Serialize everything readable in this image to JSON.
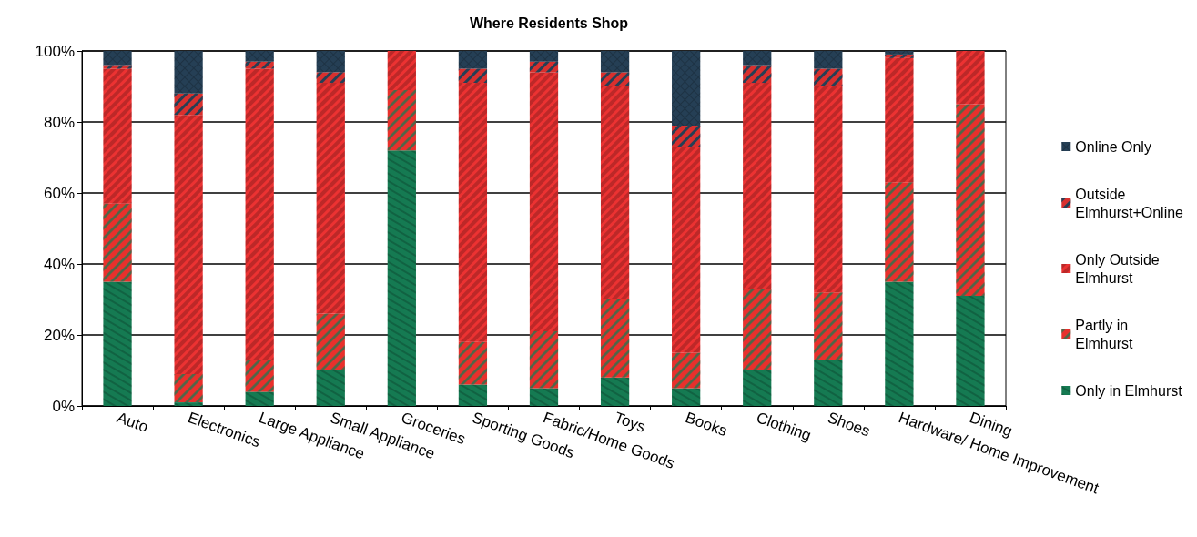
{
  "chart_data": {
    "type": "bar",
    "title": "Where Residents Shop",
    "stacked": true,
    "categories": [
      "Auto",
      "Electronics",
      "Large Appliance",
      "Small Appliance",
      "Groceries",
      "Sporting Goods",
      "Fabric/Home Goods",
      "Toys",
      "Books",
      "Clothing",
      "Shoes",
      "Hardware/ Home Improvement",
      "Dining"
    ],
    "series": [
      {
        "name": "Only in Elmhurst",
        "color": "#157a52",
        "values": [
          35,
          1,
          4,
          10,
          72,
          6,
          5,
          8,
          5,
          10,
          13,
          35,
          31
        ]
      },
      {
        "name": "Partly in Elmhurst",
        "color": "#e8302c",
        "values": [
          22,
          8,
          9,
          16,
          17,
          12,
          16,
          22,
          10,
          23,
          19,
          28,
          54
        ]
      },
      {
        "name": "Only Outside Elmhurst",
        "color": "#ec3232",
        "values": [
          38,
          73,
          82,
          65,
          11,
          73,
          73,
          60,
          58,
          58,
          58,
          35,
          15
        ]
      },
      {
        "name": "Outside Elmhurst+Online",
        "color": "#d8302e",
        "values": [
          1,
          6,
          2,
          3,
          0,
          4,
          3,
          4,
          6,
          5,
          5,
          1,
          0
        ]
      },
      {
        "name": "Online Only",
        "color": "#253f55",
        "values": [
          4,
          12,
          3,
          6,
          0,
          5,
          3,
          6,
          21,
          4,
          5,
          1,
          0
        ]
      }
    ],
    "ylim": [
      0,
      100
    ],
    "yticks": [
      {
        "value": 0,
        "label": "0%"
      },
      {
        "value": 20,
        "label": "20%"
      },
      {
        "value": 40,
        "label": "40%"
      },
      {
        "value": 60,
        "label": "60%"
      },
      {
        "value": 80,
        "label": "80%"
      },
      {
        "value": 100,
        "label": "100%"
      }
    ],
    "grid": "y",
    "legend": "right"
  }
}
